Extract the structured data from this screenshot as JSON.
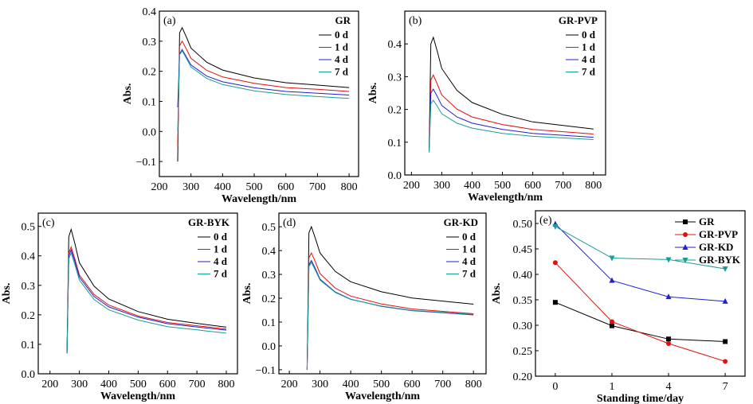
{
  "chart_data": [
    {
      "type": "line",
      "panel_label": "(a)",
      "legend_title": "GR",
      "xlabel": "Wavelength/nm",
      "ylabel": "Abs.",
      "xlim": [
        200,
        830
      ],
      "ylim": [
        -0.15,
        0.4
      ],
      "xticks": [
        200,
        300,
        400,
        500,
        600,
        700,
        800
      ],
      "yticks": [
        -0.1,
        0.0,
        0.1,
        0.2,
        0.3,
        0.4
      ],
      "x": [
        258,
        264,
        272,
        285,
        300,
        350,
        400,
        500,
        600,
        700,
        800
      ],
      "legend": "top-right",
      "series": [
        {
          "name": "0 d",
          "color": "#000000",
          "values": [
            -0.1,
            0.328,
            0.345,
            0.315,
            0.277,
            0.23,
            0.204,
            0.178,
            0.162,
            0.154,
            0.146
          ]
        },
        {
          "name": "1 d",
          "color": "#e01010",
          "values": [
            -0.05,
            0.285,
            0.3,
            0.275,
            0.243,
            0.203,
            0.181,
            0.16,
            0.146,
            0.14,
            0.133
          ]
        },
        {
          "name": "4 d",
          "color": "#2020d0",
          "values": [
            0.08,
            0.258,
            0.272,
            0.249,
            0.221,
            0.184,
            0.165,
            0.145,
            0.133,
            0.127,
            0.121
          ]
        },
        {
          "name": "7 d",
          "color": "#1a9c96",
          "values": [
            0.0,
            0.255,
            0.268,
            0.244,
            0.214,
            0.176,
            0.156,
            0.135,
            0.123,
            0.116,
            0.11
          ]
        }
      ]
    },
    {
      "type": "line",
      "panel_label": "(b)",
      "legend_title": "GR-PVP",
      "xlabel": "Wavelength/nm",
      "ylabel": "Abs.",
      "xlim": [
        178,
        840
      ],
      "ylim": [
        0,
        0.5
      ],
      "xticks": [
        200,
        300,
        400,
        500,
        600,
        700,
        800
      ],
      "yticks": [
        0.0,
        0.1,
        0.2,
        0.3,
        0.4
      ],
      "x": [
        258,
        264,
        272,
        285,
        300,
        350,
        400,
        500,
        600,
        700,
        800
      ],
      "legend": "top-right",
      "series": [
        {
          "name": "0 d",
          "color": "#000000",
          "values": [
            0.07,
            0.4,
            0.42,
            0.378,
            0.325,
            0.258,
            0.221,
            0.185,
            0.162,
            0.151,
            0.14
          ]
        },
        {
          "name": "1 d",
          "color": "#e01010",
          "values": [
            0.07,
            0.29,
            0.305,
            0.278,
            0.244,
            0.201,
            0.177,
            0.154,
            0.139,
            0.132,
            0.125
          ]
        },
        {
          "name": "4 d",
          "color": "#2020d0",
          "values": [
            0.07,
            0.25,
            0.262,
            0.24,
            0.212,
            0.177,
            0.158,
            0.139,
            0.127,
            0.121,
            0.115
          ]
        },
        {
          "name": "7 d",
          "color": "#1a9c96",
          "values": [
            0.07,
            0.217,
            0.228,
            0.21,
            0.187,
            0.158,
            0.143,
            0.127,
            0.118,
            0.113,
            0.108
          ]
        }
      ]
    },
    {
      "type": "line",
      "panel_label": "(c)",
      "legend_title": "GR-BYK",
      "xlabel": "Wavelength/nm",
      "ylabel": "Abs.",
      "xlim": [
        160,
        838
      ],
      "ylim": [
        0,
        0.545
      ],
      "xticks": [
        200,
        300,
        400,
        500,
        600,
        700,
        800
      ],
      "yticks": [
        0.0,
        0.1,
        0.2,
        0.3,
        0.4,
        0.5
      ],
      "x": [
        258,
        264,
        272,
        285,
        300,
        350,
        400,
        500,
        600,
        700,
        800
      ],
      "legend": "top-right",
      "series": [
        {
          "name": "0 d",
          "color": "#000000",
          "values": [
            0.07,
            0.465,
            0.49,
            0.44,
            0.377,
            0.297,
            0.254,
            0.211,
            0.185,
            0.171,
            0.158
          ]
        },
        {
          "name": "1 d",
          "color": "#e01010",
          "values": [
            0.07,
            0.41,
            0.43,
            0.388,
            0.335,
            0.269,
            0.233,
            0.196,
            0.174,
            0.163,
            0.152
          ]
        },
        {
          "name": "4 d",
          "color": "#2020d0",
          "values": [
            0.07,
            0.4,
            0.42,
            0.379,
            0.328,
            0.262,
            0.227,
            0.192,
            0.17,
            0.159,
            0.148
          ]
        },
        {
          "name": "7 d",
          "color": "#1a9c96",
          "values": [
            0.07,
            0.39,
            0.41,
            0.369,
            0.318,
            0.252,
            0.217,
            0.182,
            0.16,
            0.149,
            0.138
          ]
        }
      ]
    },
    {
      "type": "line",
      "panel_label": "(d)",
      "legend_title": "GR-KD",
      "xlabel": "Wavelength/nm",
      "ylabel": "Abs.",
      "xlim": [
        166,
        841
      ],
      "ylim": [
        -0.117,
        0.557
      ],
      "xticks": [
        200,
        300,
        400,
        500,
        600,
        700,
        800
      ],
      "yticks": [
        -0.1,
        0.0,
        0.1,
        0.2,
        0.3,
        0.4,
        0.5
      ],
      "x": [
        258,
        264,
        272,
        285,
        300,
        350,
        400,
        500,
        600,
        700,
        800
      ],
      "legend": "top-right",
      "series": [
        {
          "name": "0 d",
          "color": "#000000",
          "values": [
            -0.1,
            0.475,
            0.5,
            0.451,
            0.39,
            0.312,
            0.269,
            0.227,
            0.201,
            0.188,
            0.175
          ]
        },
        {
          "name": "1 d",
          "color": "#e01010",
          "values": [
            -0.1,
            0.37,
            0.39,
            0.352,
            0.303,
            0.242,
            0.209,
            0.176,
            0.155,
            0.145,
            0.135
          ]
        },
        {
          "name": "4 d",
          "color": "#2020d0",
          "values": [
            -0.1,
            0.34,
            0.358,
            0.324,
            0.28,
            0.226,
            0.196,
            0.166,
            0.148,
            0.139,
            0.13
          ]
        },
        {
          "name": "7 d",
          "color": "#1a9c96",
          "values": [
            -0.1,
            0.333,
            0.35,
            0.317,
            0.276,
            0.224,
            0.195,
            0.167,
            0.149,
            0.141,
            0.132
          ]
        }
      ]
    },
    {
      "type": "line",
      "panel_label": "(e)",
      "legend_title": "",
      "xlabel": "Standing time/day",
      "ylabel": "Abs.",
      "categories": [
        "0",
        "1",
        "4",
        "7"
      ],
      "ylim": [
        0.2,
        0.525
      ],
      "yticks": [
        0.2,
        0.25,
        0.3,
        0.35,
        0.4,
        0.45,
        0.5
      ],
      "legend": "top-right",
      "series": [
        {
          "name": "GR",
          "color": "#000000",
          "marker": "square",
          "values": [
            0.345,
            0.299,
            0.273,
            0.268
          ]
        },
        {
          "name": "GR-PVP",
          "color": "#e01010",
          "marker": "circle",
          "values": [
            0.423,
            0.307,
            0.264,
            0.229
          ]
        },
        {
          "name": "GR-KD",
          "color": "#2020d0",
          "marker": "triangle-up",
          "values": [
            0.499,
            0.388,
            0.356,
            0.347
          ]
        },
        {
          "name": "GR-BYK",
          "color": "#1a9c96",
          "marker": "triangle-down",
          "values": [
            0.494,
            0.432,
            0.429,
            0.411
          ]
        }
      ]
    }
  ]
}
